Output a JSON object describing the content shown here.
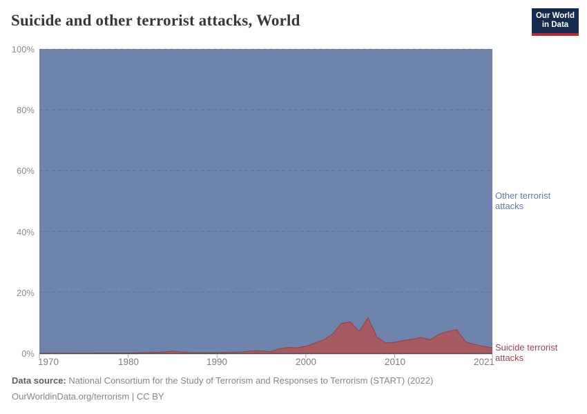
{
  "header": {
    "title": "Suicide and other terrorist attacks, World"
  },
  "logo": {
    "line1": "Our World",
    "line2": "in Data",
    "bg_color": "#152a4e",
    "bar_color": "#bb2b2f"
  },
  "chart_data": {
    "type": "area",
    "stacking": "percent",
    "title": "Suicide and other terrorist attacks, World",
    "xlabel": "",
    "ylabel": "",
    "ylim": [
      0,
      100
    ],
    "xlim": [
      1970,
      2021
    ],
    "grid": "dashed-horizontal",
    "legend_position": "right-of-plot",
    "y_ticks": [
      0,
      20,
      40,
      60,
      80,
      100
    ],
    "y_tick_suffix": "%",
    "x_ticks": [
      1970,
      1980,
      1990,
      2000,
      2010,
      2021
    ],
    "x": [
      1970,
      1971,
      1972,
      1973,
      1974,
      1975,
      1976,
      1977,
      1978,
      1979,
      1980,
      1981,
      1982,
      1983,
      1984,
      1985,
      1986,
      1987,
      1988,
      1989,
      1990,
      1991,
      1992,
      1993,
      1994,
      1995,
      1996,
      1997,
      1998,
      1999,
      2000,
      2001,
      2002,
      2003,
      2004,
      2005,
      2006,
      2007,
      2008,
      2009,
      2010,
      2011,
      2012,
      2013,
      2014,
      2015,
      2016,
      2017,
      2018,
      2019,
      2020,
      2021
    ],
    "series": [
      {
        "name": "Suicide terrorist attacks",
        "color": "#a85a62",
        "edge_color": "#93444c",
        "label_color": "#9b474e",
        "values": [
          0,
          0,
          0,
          0,
          0.05,
          0.05,
          0.05,
          0.1,
          0.1,
          0.1,
          0.1,
          0.15,
          0.2,
          0.3,
          0.4,
          0.7,
          0.4,
          0.2,
          0.2,
          0.2,
          0.2,
          0.3,
          0.3,
          0.5,
          0.8,
          0.8,
          0.5,
          1.5,
          1.9,
          1.8,
          2.3,
          3.3,
          4.4,
          6.3,
          9.8,
          10.3,
          7.1,
          11.7,
          5.3,
          3.4,
          3.6,
          4.2,
          4.6,
          5.2,
          4.4,
          6.3,
          7.2,
          7.7,
          3.7,
          2.9,
          2.3,
          1.8
        ]
      },
      {
        "name": "Other terrorist attacks",
        "color": "#6e84ad",
        "label_color": "#5f7cab",
        "values": [
          100,
          100,
          100,
          100,
          99.95,
          99.95,
          99.95,
          99.9,
          99.9,
          99.9,
          99.9,
          99.85,
          99.8,
          99.7,
          99.6,
          99.3,
          99.6,
          99.8,
          99.8,
          99.8,
          99.8,
          99.7,
          99.7,
          99.5,
          99.2,
          99.2,
          99.5,
          98.5,
          98.1,
          98.2,
          97.7,
          96.7,
          95.6,
          93.7,
          90.2,
          89.7,
          92.9,
          88.3,
          94.7,
          96.6,
          96.4,
          95.8,
          95.4,
          94.8,
          95.6,
          93.7,
          92.8,
          92.3,
          96.3,
          97.1,
          97.7,
          98.2
        ]
      }
    ]
  },
  "footer": {
    "source_label": "Data source:",
    "source_text": "National Consortium for the Study of Terrorism and Responses to Terrorism (START) (2022)",
    "license": "OurWorldinData.org/terrorism | CC BY"
  }
}
